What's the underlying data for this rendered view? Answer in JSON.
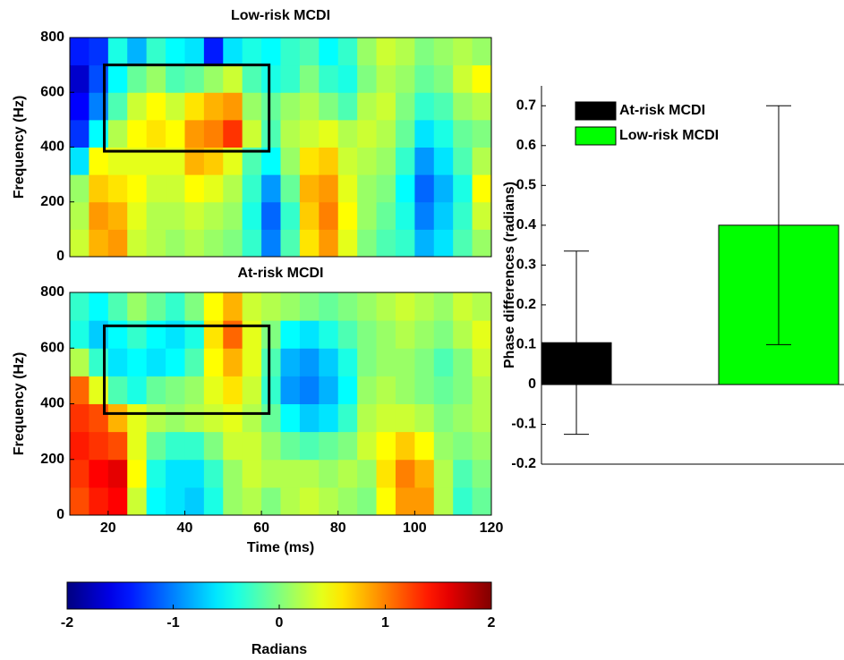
{
  "chart_data": [
    {
      "type": "heatmap",
      "title": "Low-risk MCDI",
      "ylabel": "Frequency (Hz)",
      "x": [
        12.5,
        17.5,
        22.5,
        27.5,
        32.5,
        37.5,
        42.5,
        47.5,
        52.5,
        57.5,
        62.5,
        67.5,
        72.5,
        77.5,
        82.5,
        87.5,
        92.5,
        97.5,
        102.5,
        107.5,
        112.5,
        117.5
      ],
      "y": [
        50,
        150,
        250,
        350,
        450,
        550,
        650,
        750
      ],
      "z": [
        [
          0.3,
          0.8,
          0.9,
          0.3,
          0.2,
          0.1,
          0.2,
          0.1,
          0.0,
          -0.3,
          -1.0,
          -0.2,
          0.6,
          0.9,
          0.4,
          0.0,
          -0.2,
          -0.3,
          -0.8,
          -0.6,
          -0.2,
          0.1
        ],
        [
          0.2,
          0.9,
          0.8,
          0.4,
          0.2,
          0.2,
          0.3,
          0.2,
          0.1,
          -0.4,
          -1.1,
          -0.3,
          0.7,
          1.0,
          0.5,
          0.1,
          -0.1,
          -0.4,
          -1.0,
          -0.7,
          -0.3,
          0.3
        ],
        [
          0.1,
          0.7,
          0.6,
          0.5,
          0.3,
          0.3,
          0.5,
          0.4,
          0.2,
          -0.3,
          -0.9,
          -0.1,
          0.8,
          0.9,
          0.4,
          0.1,
          0.0,
          -0.5,
          -1.1,
          -0.8,
          -0.4,
          0.5
        ],
        [
          -0.6,
          0.5,
          0.4,
          0.4,
          0.4,
          0.4,
          0.8,
          0.7,
          0.4,
          -0.2,
          -0.5,
          0.1,
          0.6,
          0.7,
          0.3,
          0.2,
          0.1,
          -0.3,
          -0.9,
          -0.6,
          -0.2,
          0.2
        ],
        [
          -1.3,
          -0.5,
          0.2,
          0.5,
          0.6,
          0.5,
          0.9,
          1.0,
          1.3,
          0.3,
          -0.2,
          0.2,
          0.3,
          0.4,
          0.2,
          0.3,
          0.2,
          -0.1,
          -0.6,
          -0.4,
          -0.1,
          0.0
        ],
        [
          -1.5,
          -1.0,
          -0.2,
          0.3,
          0.5,
          0.3,
          0.6,
          0.8,
          0.9,
          0.1,
          -0.1,
          0.1,
          0.2,
          0.0,
          -0.2,
          0.2,
          0.3,
          0.0,
          -0.3,
          -0.2,
          0.1,
          0.2
        ],
        [
          -1.7,
          -1.2,
          -0.5,
          -0.1,
          0.1,
          -0.2,
          -0.1,
          0.1,
          0.3,
          -0.2,
          -0.4,
          -0.3,
          0.0,
          -0.3,
          -0.4,
          0.0,
          0.2,
          0.1,
          -0.1,
          0.0,
          0.3,
          0.5
        ],
        [
          -1.4,
          -1.3,
          -0.4,
          -0.8,
          -0.3,
          -0.5,
          -0.6,
          -1.4,
          -0.6,
          -0.4,
          -0.5,
          -0.3,
          -0.2,
          -0.5,
          -0.3,
          0.1,
          0.3,
          0.2,
          0.0,
          0.1,
          0.2,
          0.1
        ]
      ],
      "xlim": [
        10,
        120
      ],
      "ylim": [
        0,
        800
      ],
      "yticks": [
        0,
        200,
        400,
        600,
        800
      ],
      "box": {
        "x": [
          19,
          62
        ],
        "y": [
          385,
          700
        ]
      }
    },
    {
      "type": "heatmap",
      "title": "At-risk MCDI",
      "ylabel": "Frequency (Hz)",
      "xlabel": "Time (ms)",
      "x": [
        12.5,
        17.5,
        22.5,
        27.5,
        32.5,
        37.5,
        42.5,
        47.5,
        52.5,
        57.5,
        62.5,
        67.5,
        72.5,
        77.5,
        82.5,
        87.5,
        92.5,
        97.5,
        102.5,
        107.5,
        112.5,
        117.5
      ],
      "y": [
        50,
        150,
        250,
        350,
        450,
        550,
        650,
        750
      ],
      "z": [
        [
          1.2,
          1.4,
          1.5,
          0.3,
          -0.5,
          -0.6,
          -0.7,
          -0.4,
          0.1,
          0.2,
          0.0,
          0.2,
          0.3,
          0.2,
          0.1,
          0.0,
          0.5,
          0.9,
          0.9,
          0.2,
          -0.3,
          -0.1
        ],
        [
          1.3,
          1.5,
          1.6,
          0.5,
          -0.4,
          -0.6,
          -0.6,
          -0.3,
          0.1,
          0.3,
          0.2,
          0.2,
          0.2,
          0.1,
          0.2,
          0.1,
          0.6,
          1.0,
          0.8,
          0.2,
          -0.2,
          0.0
        ],
        [
          1.4,
          1.3,
          1.2,
          0.4,
          -0.1,
          -0.3,
          -0.3,
          0.0,
          0.3,
          0.3,
          0.1,
          -0.1,
          -0.2,
          -0.1,
          0.0,
          0.3,
          0.5,
          0.7,
          0.5,
          0.1,
          0.0,
          0.1
        ],
        [
          1.3,
          1.2,
          0.8,
          0.4,
          0.2,
          0.1,
          0.2,
          0.3,
          0.4,
          0.2,
          -0.1,
          -0.5,
          -0.7,
          -0.6,
          -0.3,
          0.2,
          0.3,
          0.3,
          0.2,
          0.0,
          0.1,
          0.2
        ],
        [
          1.1,
          0.4,
          -0.2,
          -0.4,
          -0.1,
          0.0,
          0.1,
          0.4,
          0.6,
          0.3,
          -0.3,
          -0.9,
          -1.0,
          -0.8,
          -0.5,
          0.1,
          0.2,
          0.1,
          0.0,
          -0.1,
          0.0,
          0.2
        ],
        [
          0.2,
          -0.3,
          -0.6,
          -0.5,
          -0.6,
          -0.5,
          -0.2,
          0.5,
          0.8,
          0.4,
          -0.2,
          -0.8,
          -0.9,
          -0.7,
          -0.4,
          0.0,
          0.1,
          0.1,
          0.0,
          -0.2,
          0.0,
          0.3
        ],
        [
          -0.4,
          -0.7,
          -0.5,
          -0.3,
          -0.5,
          -0.6,
          -0.4,
          0.6,
          1.1,
          0.4,
          0.0,
          -0.5,
          -0.6,
          -0.4,
          -0.2,
          0.0,
          0.1,
          0.2,
          0.1,
          0.0,
          0.2,
          0.4
        ],
        [
          -0.3,
          -0.5,
          -0.2,
          0.1,
          -0.1,
          -0.3,
          0.0,
          0.5,
          0.8,
          0.3,
          0.2,
          0.1,
          0.0,
          -0.1,
          0.0,
          0.1,
          0.2,
          0.3,
          0.2,
          0.1,
          0.3,
          0.2
        ]
      ],
      "xlim": [
        10,
        120
      ],
      "xticks": [
        20,
        40,
        60,
        80,
        100,
        120
      ],
      "ylim": [
        0,
        800
      ],
      "yticks": [
        0,
        200,
        400,
        600,
        800
      ],
      "box": {
        "x": [
          19,
          62
        ],
        "y": [
          365,
          680
        ]
      },
      "colorbar": {
        "label": "Radians",
        "lim": [
          -2,
          2
        ],
        "ticks": [
          -2,
          -1,
          0,
          1,
          2
        ]
      }
    },
    {
      "type": "bar",
      "ylabel": "Phase differences (radians)",
      "series": [
        {
          "name": "At-risk MCDI",
          "color": "#000000",
          "values": [
            0.105
          ],
          "errors": [
            0.23
          ]
        },
        {
          "name": "Low-risk MCDI",
          "color": "#00ff00",
          "values": [
            0.4
          ],
          "errors": [
            0.3
          ]
        }
      ],
      "ylim": [
        -0.2,
        0.75
      ],
      "yticks": [
        -0.2,
        -0.1,
        0,
        0.1,
        0.2,
        0.3,
        0.4,
        0.5,
        0.6,
        0.7
      ],
      "legend": "upper-left"
    }
  ]
}
